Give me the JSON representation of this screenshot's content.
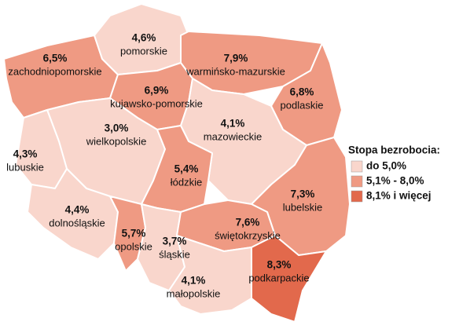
{
  "map": {
    "regions": [
      {
        "name": "zachodniopomorskie",
        "value": 6.5,
        "value_label": "6,5%"
      },
      {
        "name": "pomorskie",
        "value": 4.6,
        "value_label": "4,6%"
      },
      {
        "name": "warmińsko-mazurskie",
        "value": 7.9,
        "value_label": "7,9%"
      },
      {
        "name": "podlaskie",
        "value": 6.8,
        "value_label": "6,8%"
      },
      {
        "name": "kujawsko-pomorskie",
        "value": 6.9,
        "value_label": "6,9%"
      },
      {
        "name": "wielkopolskie",
        "value": 3.0,
        "value_label": "3,0%"
      },
      {
        "name": "lubuskie",
        "value": 4.3,
        "value_label": "4,3%"
      },
      {
        "name": "mazowieckie",
        "value": 4.1,
        "value_label": "4,1%"
      },
      {
        "name": "łódzkie",
        "value": 5.4,
        "value_label": "5,4%"
      },
      {
        "name": "lubelskie",
        "value": 7.3,
        "value_label": "7,3%"
      },
      {
        "name": "dolnośląskie",
        "value": 4.4,
        "value_label": "4,4%"
      },
      {
        "name": "opolskie",
        "value": 5.7,
        "value_label": "5,7%"
      },
      {
        "name": "śląskie",
        "value": 3.7,
        "value_label": "3,7%"
      },
      {
        "name": "świętokrzyskie",
        "value": 7.6,
        "value_label": "7,6%"
      },
      {
        "name": "małopolskie",
        "value": 4.1,
        "value_label": "4,1%"
      },
      {
        "name": "podkarpackie",
        "value": 8.3,
        "value_label": "8,3%"
      }
    ],
    "legend": {
      "title": "Stopa bezrobocia:",
      "classes": [
        {
          "label": "do 5,0%",
          "upper": 5.0,
          "color": "#f9d6cc"
        },
        {
          "label": "5,1% - 8,0%",
          "lower": 5.1,
          "upper": 8.0,
          "color": "#ef9a83"
        },
        {
          "label": "8,1% i więcej",
          "lower": 8.1,
          "color": "#e2694c"
        }
      ]
    }
  }
}
